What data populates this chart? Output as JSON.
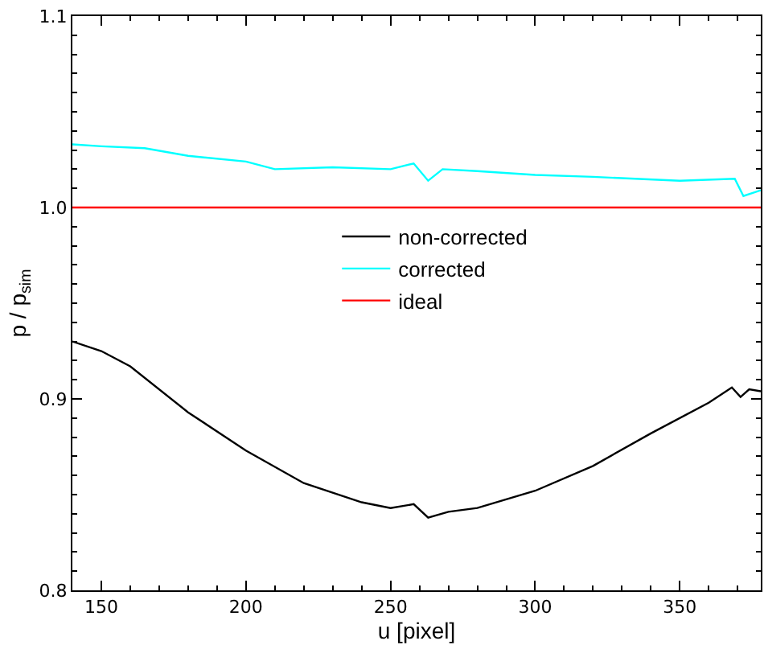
{
  "chart_data": {
    "type": "line",
    "xlabel": "u [pixel]",
    "ylabel": "p / p$_{sim}$",
    "xlim": [
      140,
      378
    ],
    "xticks": [
      150,
      200,
      250,
      300,
      350
    ],
    "ylim": [
      0.8,
      1.1
    ],
    "yticks": [
      {
        "value": 0.8,
        "label": "0.8"
      },
      {
        "value": 0.9,
        "label": "0.9"
      },
      {
        "value": 1.0,
        "label": "1.0"
      },
      {
        "value": 1.1,
        "label": "1.1"
      }
    ],
    "grid": false,
    "legend": "center",
    "marker": "none",
    "line_style": "solid",
    "series": [
      {
        "name": "non-corrected",
        "color": "#000000",
        "x": [
          140,
          150,
          160,
          180,
          200,
          220,
          240,
          250,
          258,
          263,
          270,
          280,
          300,
          320,
          340,
          360,
          368,
          371,
          374,
          378
        ],
        "values": [
          0.93,
          0.925,
          0.917,
          0.893,
          0.873,
          0.856,
          0.846,
          0.843,
          0.845,
          0.838,
          0.841,
          0.843,
          0.852,
          0.865,
          0.882,
          0.898,
          0.906,
          0.901,
          0.905,
          0.904
        ]
      },
      {
        "name": "corrected",
        "color": "#00ffff",
        "x": [
          140,
          150,
          165,
          180,
          200,
          210,
          230,
          250,
          258,
          263,
          268,
          280,
          300,
          320,
          350,
          369,
          372,
          378
        ],
        "values": [
          1.033,
          1.032,
          1.031,
          1.027,
          1.024,
          1.02,
          1.021,
          1.02,
          1.023,
          1.014,
          1.02,
          1.019,
          1.017,
          1.016,
          1.014,
          1.015,
          1.006,
          1.009
        ]
      },
      {
        "name": "ideal",
        "color": "#ff0000",
        "x": [
          140,
          378
        ],
        "values": [
          1.0,
          1.0
        ]
      }
    ]
  }
}
